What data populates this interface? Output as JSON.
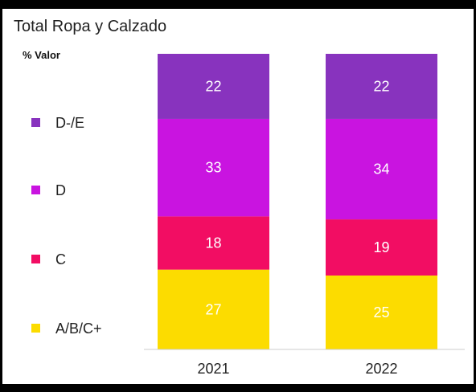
{
  "chart_data": {
    "type": "bar",
    "stacked": true,
    "title": "Total Ropa y Calzado",
    "subtitle": "% Valor",
    "categories": [
      "2021",
      "2022"
    ],
    "series": [
      {
        "name": "A/B/C+",
        "color": "#FCDC00",
        "label_color": "#222222",
        "values": [
          27,
          25
        ]
      },
      {
        "name": "C",
        "color": "#F20D63",
        "label_color": "#ffffff",
        "values": [
          18,
          19
        ]
      },
      {
        "name": "D",
        "color": "#C914E0",
        "label_color": "#ffffff",
        "values": [
          33,
          34
        ]
      },
      {
        "name": "D-/E",
        "color": "#8833BE",
        "label_color": "#ffffff",
        "values": [
          22,
          22
        ]
      }
    ],
    "ylim": [
      0,
      100
    ],
    "legend": "left",
    "grid": false
  }
}
